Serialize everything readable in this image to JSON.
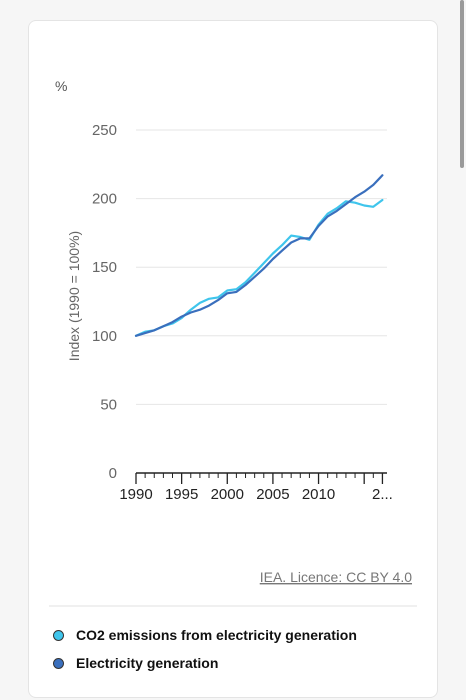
{
  "chart_data": {
    "type": "line",
    "unit_label": "%",
    "ylabel": "Index (1990 = 100%)",
    "xlabel": "",
    "ylim": [
      0,
      250
    ],
    "yticks": [
      "0",
      "50",
      "100",
      "150",
      "200",
      "250"
    ],
    "xticks": [
      {
        "year": 1990,
        "label": "1990"
      },
      {
        "year": 1995,
        "label": "1995"
      },
      {
        "year": 2000,
        "label": "2000"
      },
      {
        "year": 2005,
        "label": "2005"
      },
      {
        "year": 2010,
        "label": "2010"
      },
      {
        "year": 2017,
        "label": "2..."
      }
    ],
    "grid": true,
    "x": [
      1990,
      1991,
      1992,
      1993,
      1994,
      1995,
      1996,
      1997,
      1998,
      1999,
      2000,
      2001,
      2002,
      2003,
      2004,
      2005,
      2006,
      2007,
      2008,
      2009,
      2010,
      2011,
      2012,
      2013,
      2014,
      2015,
      2016,
      2017,
      2018
    ],
    "series": [
      {
        "name": "CO2 emissions from electricity generation",
        "color": "#3fc5ec",
        "values": [
          100,
          103,
          104,
          107,
          109,
          113,
          119,
          124,
          127,
          128,
          133,
          134,
          139,
          146,
          153,
          160,
          166,
          173,
          172,
          170,
          181,
          189,
          193,
          198,
          197,
          195,
          194,
          199,
          null
        ]
      },
      {
        "name": "Electricity generation",
        "color": "#3a6fbd",
        "values": [
          100,
          102,
          104,
          107,
          110,
          114,
          117,
          119,
          122,
          126,
          131,
          132,
          137,
          143,
          149,
          156,
          162,
          168,
          171,
          171,
          180,
          187,
          191,
          196,
          201,
          205,
          210,
          217,
          null
        ]
      }
    ],
    "source": "IEA. Licence: CC BY 4.0",
    "legend_position": "bottom"
  }
}
